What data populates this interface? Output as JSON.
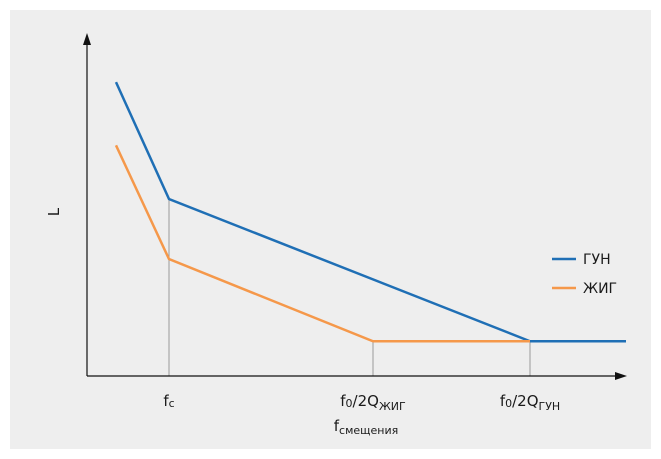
{
  "chart_data": {
    "type": "line",
    "ylabel": "L",
    "xlabel": {
      "main": "f",
      "sub": "смещения"
    },
    "x_ticks": [
      {
        "main": "f",
        "sub": "c",
        "rest": ""
      },
      {
        "main": "f",
        "sub": "0",
        "rest": "/2Q",
        "sub2": "ЖИГ"
      },
      {
        "main": "f",
        "sub": "0",
        "rest": "/2Q",
        "sub2": "ГУН"
      }
    ],
    "series": [
      {
        "name": "ГУН",
        "color": "#1f6fb5",
        "points": [
          {
            "x": 0.0,
            "y": 0.93
          },
          {
            "x": 1.0,
            "y": 0.56
          },
          {
            "x": 3.0,
            "y": 0.11
          },
          {
            "x": 4.0,
            "y": 0.11
          }
        ]
      },
      {
        "name": "ЖИГ",
        "color": "#f5984a",
        "points": [
          {
            "x": 0.0,
            "y": 0.73
          },
          {
            "x": 1.0,
            "y": 0.37
          },
          {
            "x": 2.0,
            "y": 0.11
          },
          {
            "x": 3.0,
            "y": 0.11
          }
        ]
      }
    ],
    "legend_position": "right",
    "grid": false
  }
}
